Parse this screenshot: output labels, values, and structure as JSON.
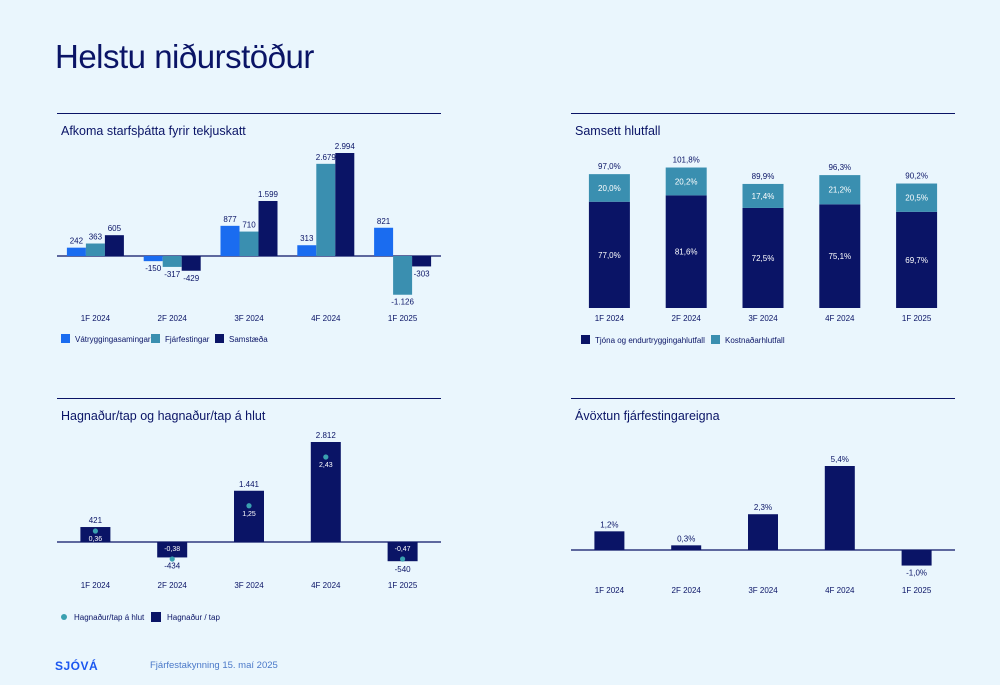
{
  "page": {
    "title": "Helstu niðurstöður"
  },
  "footer": {
    "logo": "SJÓVÁ",
    "text": "Fjárfestakynning 15. maí 2025"
  },
  "colors": {
    "bright_blue": "#1a6cf0",
    "teal": "#3a8fb0",
    "navy": "#0a1466",
    "dot": "#3aa0b0"
  },
  "chart_data": [
    {
      "id": "afkoma",
      "type": "bar",
      "title": "Afkoma starfsþátta fyrir tekjuskatt",
      "categories": [
        "1F 2024",
        "2F 2024",
        "3F 2024",
        "4F 2024",
        "1F 2025"
      ],
      "series": [
        {
          "name": "Vátryggingasamingar",
          "color": "#1a6cf0",
          "values": [
            242,
            -150,
            877,
            313,
            821
          ],
          "labels": [
            "242",
            "-150",
            "877",
            "313",
            "821"
          ]
        },
        {
          "name": "Fjárfestingar",
          "color": "#3a8fb0",
          "values": [
            363,
            -317,
            710,
            2679,
            -1126
          ],
          "labels": [
            "363",
            "-317",
            "710",
            "2.679",
            "-1.126"
          ]
        },
        {
          "name": "Samstæða",
          "color": "#0a1466",
          "values": [
            605,
            -429,
            1599,
            2994,
            -303
          ],
          "labels": [
            "605",
            "-429",
            "1.599",
            "2.994",
            "-303"
          ]
        }
      ],
      "legend": "bottom-left"
    },
    {
      "id": "samsett",
      "type": "bar",
      "stacked": true,
      "title": "Samsett hlutfall",
      "categories": [
        "1F 2024",
        "2F 2024",
        "3F 2024",
        "4F 2024",
        "1F 2025"
      ],
      "series": [
        {
          "name": "Tjóna og endurtryggingahlutfall",
          "color": "#0a1466",
          "values": [
            77.0,
            81.6,
            72.5,
            75.1,
            69.7
          ],
          "labels": [
            "77,0%",
            "81,6%",
            "72,5%",
            "75,1%",
            "69,7%"
          ]
        },
        {
          "name": "Kostnaðarhlutfall",
          "color": "#3a8fb0",
          "values": [
            20.0,
            20.2,
            17.4,
            21.2,
            20.5
          ],
          "labels": [
            "20,0%",
            "20,2%",
            "17,4%",
            "21,2%",
            "20,5%"
          ]
        }
      ],
      "totals": [
        "97,0%",
        "101,8%",
        "89,9%",
        "96,3%",
        "90,2%"
      ],
      "total_values": [
        97.0,
        101.8,
        89.9,
        96.3,
        90.2
      ],
      "legend": "bottom-left"
    },
    {
      "id": "hagnadur",
      "type": "bar",
      "title": "Hagnaður/tap og hagnaður/tap á hlut",
      "categories": [
        "1F 2024",
        "2F 2024",
        "3F 2024",
        "4F 2024",
        "1F 2025"
      ],
      "series": [
        {
          "name": "Hagnaður / tap",
          "color": "#0a1466",
          "values": [
            421,
            -434,
            1441,
            2812,
            -540
          ],
          "labels": [
            "421",
            "-434",
            "1.441",
            "2.812",
            "-540"
          ]
        },
        {
          "name": "Hagnaður/tap á hlut",
          "color": "#3aa0b0",
          "marker": "dot",
          "values": [
            0.36,
            -0.38,
            1.25,
            2.43,
            -0.47
          ],
          "labels": [
            "0,36",
            "-0,38",
            "1,25",
            "2,43",
            "-0,47"
          ]
        }
      ],
      "legend_order": [
        "Hagnaður/tap á hlut",
        "Hagnaður / tap"
      ],
      "legend": "bottom-left"
    },
    {
      "id": "avoxtun",
      "type": "bar",
      "title": "Ávöxtun fjárfestingareigna",
      "categories": [
        "1F 2024",
        "2F 2024",
        "3F 2024",
        "4F 2024",
        "1F 2025"
      ],
      "series": [
        {
          "name": "",
          "color": "#0a1466",
          "values": [
            1.2,
            0.3,
            2.3,
            5.4,
            -1.0
          ],
          "labels": [
            "1,2%",
            "0,3%",
            "2,3%",
            "5,4%",
            "-1,0%"
          ]
        }
      ]
    }
  ]
}
